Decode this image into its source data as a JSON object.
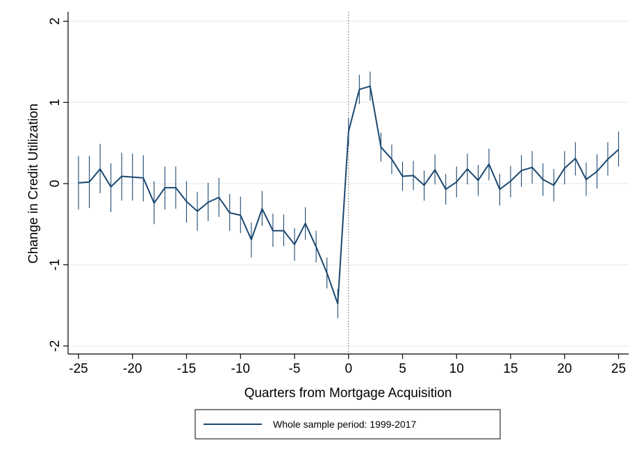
{
  "chart_data": {
    "type": "line",
    "title": "",
    "xlabel": "Quarters from Mortgage Acquisition",
    "ylabel": "Change in Credit Utilization",
    "xlim": [
      -26,
      26
    ],
    "ylim": [
      -2.1,
      2.1
    ],
    "xticks": [
      -25,
      -20,
      -15,
      -10,
      -5,
      0,
      5,
      10,
      15,
      20,
      25
    ],
    "yticks": [
      -2,
      -1,
      0,
      1,
      2
    ],
    "grid": "horizontal",
    "reference_line_x": 0,
    "legend_position": "bottom",
    "colors": {
      "series": "#1a476f",
      "grid": "#e4eef0",
      "axis": "#000000",
      "refline": "#555555"
    },
    "series": [
      {
        "name": "Whole sample period: 1999-2017",
        "points": [
          {
            "x": -25,
            "y": 0.01,
            "lo": -0.32,
            "hi": 0.34
          },
          {
            "x": -24,
            "y": 0.02,
            "lo": -0.3,
            "hi": 0.34
          },
          {
            "x": -23,
            "y": 0.18,
            "lo": -0.12,
            "hi": 0.49
          },
          {
            "x": -22,
            "y": -0.04,
            "lo": -0.35,
            "hi": 0.25
          },
          {
            "x": -21,
            "y": 0.09,
            "lo": -0.21,
            "hi": 0.38
          },
          {
            "x": -20,
            "y": 0.08,
            "lo": -0.21,
            "hi": 0.37
          },
          {
            "x": -19,
            "y": 0.07,
            "lo": -0.22,
            "hi": 0.35
          },
          {
            "x": -18,
            "y": -0.24,
            "lo": -0.5,
            "hi": 0.03
          },
          {
            "x": -17,
            "y": -0.05,
            "lo": -0.32,
            "hi": 0.21
          },
          {
            "x": -16,
            "y": -0.05,
            "lo": -0.31,
            "hi": 0.21
          },
          {
            "x": -15,
            "y": -0.22,
            "lo": -0.48,
            "hi": 0.03
          },
          {
            "x": -14,
            "y": -0.34,
            "lo": -0.58,
            "hi": -0.1
          },
          {
            "x": -13,
            "y": -0.23,
            "lo": -0.46,
            "hi": 0.01
          },
          {
            "x": -12,
            "y": -0.17,
            "lo": -0.41,
            "hi": 0.07
          },
          {
            "x": -11,
            "y": -0.36,
            "lo": -0.58,
            "hi": -0.13
          },
          {
            "x": -10,
            "y": -0.39,
            "lo": -0.61,
            "hi": -0.16
          },
          {
            "x": -9,
            "y": -0.69,
            "lo": -0.91,
            "hi": -0.48
          },
          {
            "x": -8,
            "y": -0.31,
            "lo": -0.52,
            "hi": -0.09
          },
          {
            "x": -7,
            "y": -0.58,
            "lo": -0.78,
            "hi": -0.37
          },
          {
            "x": -6,
            "y": -0.58,
            "lo": -0.77,
            "hi": -0.38
          },
          {
            "x": -5,
            "y": -0.75,
            "lo": -0.95,
            "hi": -0.55
          },
          {
            "x": -4,
            "y": -0.49,
            "lo": -0.69,
            "hi": -0.29
          },
          {
            "x": -3,
            "y": -0.78,
            "lo": -0.97,
            "hi": -0.58
          },
          {
            "x": -2,
            "y": -1.1,
            "lo": -1.29,
            "hi": -0.91
          },
          {
            "x": -1,
            "y": -1.48,
            "lo": -1.66,
            "hi": -1.3
          },
          {
            "x": 0,
            "y": 0.64,
            "lo": 0.47,
            "hi": 0.81
          },
          {
            "x": 1,
            "y": 1.16,
            "lo": 0.98,
            "hi": 1.34
          },
          {
            "x": 2,
            "y": 1.2,
            "lo": 1.02,
            "hi": 1.38
          },
          {
            "x": 3,
            "y": 0.45,
            "lo": 0.27,
            "hi": 0.63
          },
          {
            "x": 4,
            "y": 0.3,
            "lo": 0.12,
            "hi": 0.48
          },
          {
            "x": 5,
            "y": 0.09,
            "lo": -0.09,
            "hi": 0.27
          },
          {
            "x": 6,
            "y": 0.1,
            "lo": -0.08,
            "hi": 0.28
          },
          {
            "x": 7,
            "y": -0.02,
            "lo": -0.21,
            "hi": 0.16
          },
          {
            "x": 8,
            "y": 0.17,
            "lo": -0.01,
            "hi": 0.36
          },
          {
            "x": 9,
            "y": -0.07,
            "lo": -0.26,
            "hi": 0.12
          },
          {
            "x": 10,
            "y": 0.02,
            "lo": -0.17,
            "hi": 0.21
          },
          {
            "x": 11,
            "y": 0.18,
            "lo": -0.01,
            "hi": 0.37
          },
          {
            "x": 12,
            "y": 0.04,
            "lo": -0.15,
            "hi": 0.23
          },
          {
            "x": 13,
            "y": 0.24,
            "lo": 0.04,
            "hi": 0.43
          },
          {
            "x": 14,
            "y": -0.07,
            "lo": -0.27,
            "hi": 0.12
          },
          {
            "x": 15,
            "y": 0.03,
            "lo": -0.17,
            "hi": 0.22
          },
          {
            "x": 16,
            "y": 0.16,
            "lo": -0.04,
            "hi": 0.35
          },
          {
            "x": 17,
            "y": 0.2,
            "lo": 0.0,
            "hi": 0.4
          },
          {
            "x": 18,
            "y": 0.05,
            "lo": -0.15,
            "hi": 0.25
          },
          {
            "x": 19,
            "y": -0.02,
            "lo": -0.22,
            "hi": 0.18
          },
          {
            "x": 20,
            "y": 0.19,
            "lo": -0.01,
            "hi": 0.4
          },
          {
            "x": 21,
            "y": 0.31,
            "lo": 0.1,
            "hi": 0.51
          },
          {
            "x": 22,
            "y": 0.05,
            "lo": -0.15,
            "hi": 0.26
          },
          {
            "x": 23,
            "y": 0.15,
            "lo": -0.06,
            "hi": 0.36
          },
          {
            "x": 24,
            "y": 0.3,
            "lo": 0.1,
            "hi": 0.51
          },
          {
            "x": 25,
            "y": 0.42,
            "lo": 0.21,
            "hi": 0.64
          }
        ]
      }
    ]
  }
}
